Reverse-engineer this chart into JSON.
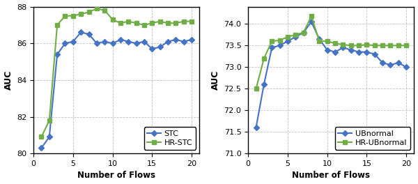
{
  "stc_x": [
    1,
    2,
    3,
    4,
    5,
    6,
    7,
    8,
    9,
    10,
    11,
    12,
    13,
    14,
    15,
    16,
    17,
    18,
    19,
    20
  ],
  "stc_y": [
    80.3,
    80.9,
    85.4,
    86.0,
    86.1,
    86.6,
    86.5,
    86.0,
    86.1,
    86.0,
    86.2,
    86.1,
    86.0,
    86.1,
    85.7,
    85.8,
    86.1,
    86.2,
    86.1,
    86.2
  ],
  "hrstc_x": [
    1,
    2,
    3,
    4,
    5,
    6,
    7,
    8,
    9,
    10,
    11,
    12,
    13,
    14,
    15,
    16,
    17,
    18,
    19,
    20
  ],
  "hrstc_y": [
    80.9,
    81.8,
    87.0,
    87.5,
    87.5,
    87.6,
    87.7,
    87.9,
    87.8,
    87.3,
    87.1,
    87.2,
    87.1,
    87.0,
    87.1,
    87.2,
    87.1,
    87.1,
    87.2,
    87.2
  ],
  "ubnormal_x": [
    1,
    2,
    3,
    4,
    5,
    6,
    7,
    8,
    9,
    10,
    11,
    12,
    13,
    14,
    15,
    16,
    17,
    18,
    19,
    20
  ],
  "ubnormal_y": [
    71.6,
    72.6,
    73.45,
    73.5,
    73.6,
    73.7,
    73.8,
    74.05,
    73.65,
    73.4,
    73.35,
    73.45,
    73.4,
    73.35,
    73.35,
    73.3,
    73.1,
    73.05,
    73.1,
    73.0
  ],
  "hrubnormal_x": [
    1,
    2,
    3,
    4,
    5,
    6,
    7,
    8,
    9,
    10,
    11,
    12,
    13,
    14,
    15,
    16,
    17,
    18,
    19,
    20
  ],
  "hrubnormal_y": [
    72.5,
    73.2,
    73.6,
    73.62,
    73.7,
    73.75,
    73.8,
    74.18,
    73.6,
    73.6,
    73.55,
    73.52,
    73.5,
    73.5,
    73.52,
    73.5,
    73.5,
    73.5,
    73.5,
    73.5
  ],
  "stc_color": "#4472C4",
  "hrstc_color": "#70AD47",
  "ubnormal_color": "#4472C4",
  "hrubnormal_color": "#70AD47",
  "ylabel": "AUC",
  "xlabel": "Number of Flows",
  "stc_label": "STC",
  "hrstc_label": "HR-STC",
  "ubnormal_label": "UBnormal",
  "hrubnormal_label": "HR-UBnormal",
  "stc_ylim": [
    80,
    88
  ],
  "ubn_ylim": [
    71,
    74.4
  ],
  "stc_yticks": [
    80,
    82,
    84,
    86,
    88
  ],
  "ubn_yticks": [
    71,
    71.5,
    72,
    72.5,
    73,
    73.5,
    74
  ],
  "xticks": [
    0,
    5,
    10,
    15,
    20
  ],
  "bg_color": "#f0f0f0"
}
